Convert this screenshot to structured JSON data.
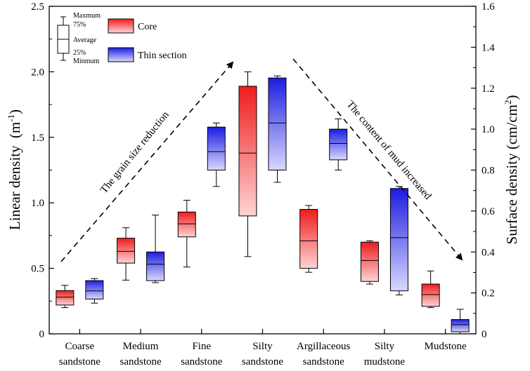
{
  "chart_data": {
    "type": "box",
    "left_axis": {
      "label": "Linear density",
      "unit_base": "(m",
      "unit_sup": "-1",
      "unit_close": ")",
      "ylim": [
        0,
        2.5
      ],
      "ticks": [
        "0",
        "0.5",
        "1.0",
        "1.5",
        "2.0",
        "2.5"
      ],
      "tick_values": [
        0,
        0.5,
        1.0,
        1.5,
        2.0,
        2.5
      ]
    },
    "right_axis": {
      "label_base": "Surface density (cm/cm",
      "label_sup": "2",
      "label_close": ")",
      "ylim": [
        0,
        1.6
      ],
      "ticks": [
        "0",
        "0.2",
        "0.4",
        "0.6",
        "0.8",
        "1.0",
        "1.2",
        "1.4",
        "1.6"
      ],
      "tick_values": [
        0,
        0.2,
        0.4,
        0.6,
        0.8,
        1.0,
        1.2,
        1.4,
        1.6
      ]
    },
    "categories": [
      [
        "Coarse",
        "sandstone"
      ],
      [
        "Medium",
        "sandstone"
      ],
      [
        "Fine",
        "sandstone"
      ],
      [
        "Silty",
        "sandstone"
      ],
      [
        "Argillaceous",
        "sandstone"
      ],
      [
        "Silty",
        "mudstone"
      ],
      [
        "Mudstone",
        ""
      ]
    ],
    "series": [
      {
        "name": "Core",
        "axis": "left",
        "colors": [
          "#ee1c1c",
          "#ffd4d4"
        ],
        "boxes": [
          {
            "min": 0.2,
            "q1": 0.22,
            "median": 0.28,
            "q3": 0.33,
            "max": 0.37
          },
          {
            "min": 0.41,
            "q1": 0.54,
            "median": 0.63,
            "q3": 0.73,
            "max": 0.81
          },
          {
            "min": 0.51,
            "q1": 0.74,
            "median": 0.84,
            "q3": 0.93,
            "max": 1.02
          },
          {
            "min": 0.59,
            "q1": 0.9,
            "median": 1.38,
            "q3": 1.89,
            "max": 2.0
          },
          {
            "min": 0.47,
            "q1": 0.5,
            "median": 0.71,
            "q3": 0.95,
            "max": 0.98
          },
          {
            "min": 0.38,
            "q1": 0.4,
            "median": 0.56,
            "q3": 0.7,
            "max": 0.71
          },
          {
            "min": 0.2,
            "q1": 0.21,
            "median": 0.3,
            "q3": 0.38,
            "max": 0.48
          }
        ]
      },
      {
        "name": "Thin section",
        "axis": "right",
        "colors": [
          "#1c1ce0",
          "#d8d8ff"
        ],
        "boxes": [
          {
            "min": 0.15,
            "q1": 0.17,
            "median": 0.21,
            "q3": 0.26,
            "max": 0.27
          },
          {
            "min": 0.25,
            "q1": 0.26,
            "median": 0.34,
            "q3": 0.4,
            "max": 0.58
          },
          {
            "min": 0.72,
            "q1": 0.8,
            "median": 0.89,
            "q3": 1.01,
            "max": 1.03
          },
          {
            "min": 0.74,
            "q1": 0.8,
            "median": 1.03,
            "q3": 1.25,
            "max": 1.26
          },
          {
            "min": 0.8,
            "q1": 0.85,
            "median": 0.93,
            "q3": 1.0,
            "max": 1.05
          },
          {
            "min": 0.19,
            "q1": 0.21,
            "median": 0.47,
            "q3": 0.71,
            "max": 0.72
          },
          {
            "min": 0.0,
            "q1": 0.01,
            "median": 0.045,
            "q3": 0.07,
            "max": 0.12
          }
        ]
      }
    ],
    "legend": {
      "placement": "top-left",
      "box_labels": {
        "max": "Maxmum",
        "q3": "75%",
        "avg": "Average",
        "q1": "25%",
        "min": "Minmum"
      },
      "entries": [
        "Core",
        "Thin section"
      ]
    },
    "annotations": {
      "left": "The grain size reduction",
      "right": "The content of mud increased"
    }
  }
}
